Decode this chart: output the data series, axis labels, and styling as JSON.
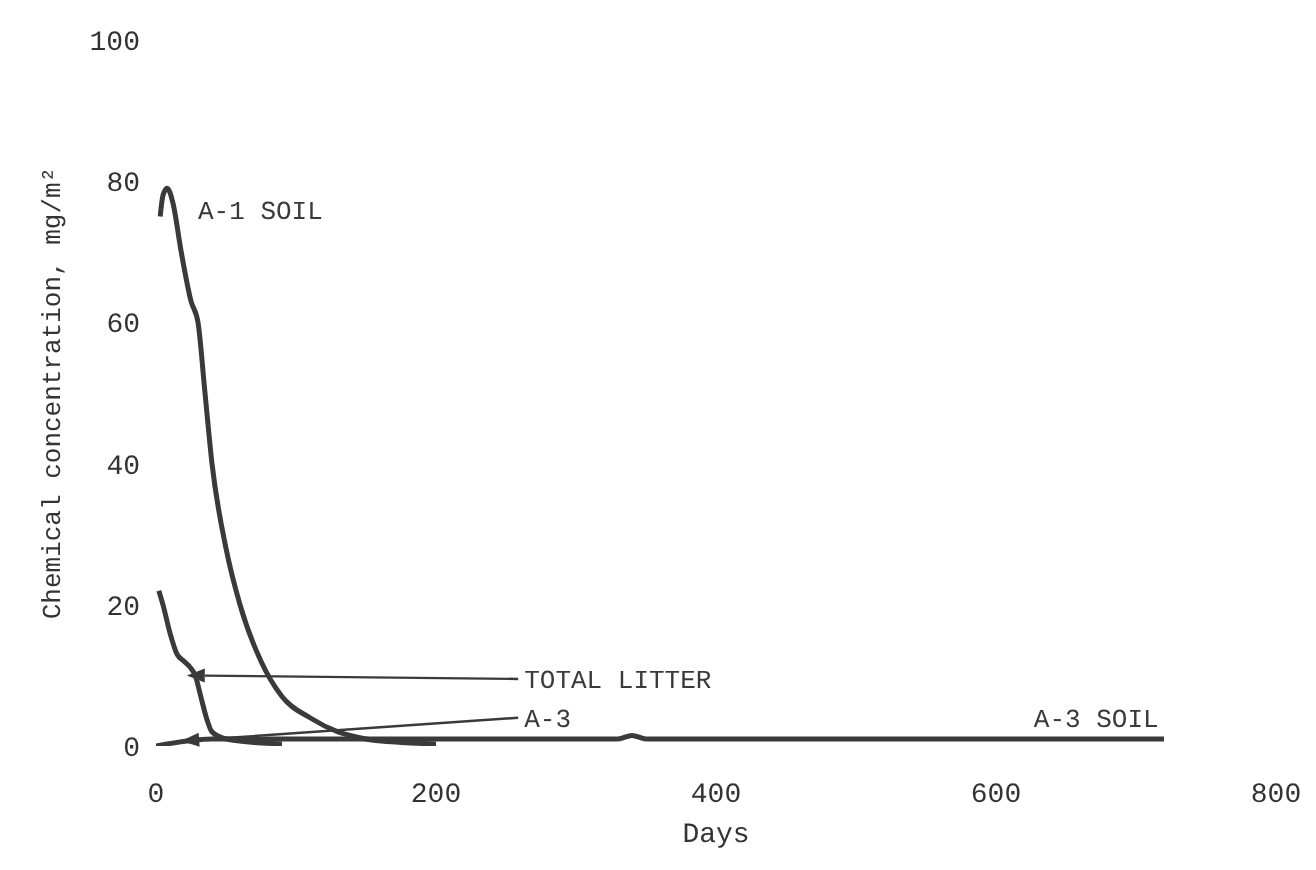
{
  "chart_data": {
    "type": "line",
    "xlabel": "Days",
    "ylabel": "Chemical concentration, mg/m²",
    "xlim": [
      0,
      800
    ],
    "xticks": [
      0,
      200,
      400,
      600,
      800
    ],
    "ylim": [
      0,
      100
    ],
    "yticks": [
      0,
      20,
      40,
      60,
      80,
      100
    ],
    "grid": false,
    "legend": false,
    "marker": "none",
    "line_style": "solid",
    "series": [
      {
        "name": "A-1 SOIL",
        "color": "#3a3a3a",
        "x": [
          3,
          5,
          8,
          12,
          18,
          25,
          30,
          35,
          40,
          50,
          60,
          75,
          90,
          110,
          130,
          150,
          175,
          200
        ],
        "values": [
          75,
          78,
          79,
          77,
          70,
          63,
          60,
          50,
          40,
          28,
          20,
          12,
          7,
          4,
          2,
          1,
          0.5,
          0.3
        ]
      },
      {
        "name": "TOTAL LITTER",
        "color": "#3a3a3a",
        "x": [
          2,
          5,
          10,
          15,
          20,
          25,
          28,
          32,
          36,
          40,
          50,
          70,
          90
        ],
        "values": [
          22,
          20,
          16,
          13,
          12,
          11,
          10,
          7,
          4,
          2,
          1,
          0.5,
          0.3
        ]
      },
      {
        "name": "A-3",
        "color": "#3a3a3a",
        "x": [
          0,
          40,
          60,
          80,
          100
        ],
        "values": [
          0,
          1,
          1,
          1,
          1
        ]
      },
      {
        "name": "A-3 SOIL",
        "color": "#3a3a3a",
        "x": [
          100,
          200,
          330,
          340,
          350,
          500,
          720
        ],
        "values": [
          1,
          1,
          1,
          1.5,
          1,
          1,
          1
        ]
      }
    ]
  }
}
